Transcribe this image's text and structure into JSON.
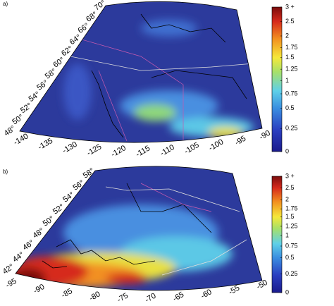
{
  "panels": [
    {
      "label": "a)",
      "lat_labels": [
        "70°",
        "68°",
        "66°",
        "64°",
        "62°",
        "60°",
        "58°",
        "56°",
        "54°",
        "52°",
        "50°",
        "48°"
      ],
      "lon_labels": [
        "-140",
        "-135",
        "-130",
        "-125",
        "-120",
        "-115",
        "-110",
        "-105",
        "-100",
        "-95",
        "-90"
      ],
      "colorbar_labels": [
        "3 +",
        "2.5",
        "2",
        "1.75",
        "1.5",
        "1.25",
        "1",
        "0.75",
        "0.5",
        "0.25",
        "0"
      ]
    },
    {
      "label": "b)",
      "lat_labels": [
        "58°",
        "56°",
        "54°",
        "52°",
        "50°",
        "48°",
        "46°",
        "44°",
        "42°"
      ],
      "lon_labels": [
        "-95",
        "-90",
        "-85",
        "-80",
        "-75",
        "-70",
        "-65",
        "-60",
        "-55",
        "-50"
      ],
      "colorbar_labels": [
        "3 +",
        "2.5",
        "2",
        "1.75",
        "1.5",
        "1.25",
        "1",
        "0.75",
        "0.5",
        "0.25",
        "0"
      ]
    }
  ]
}
